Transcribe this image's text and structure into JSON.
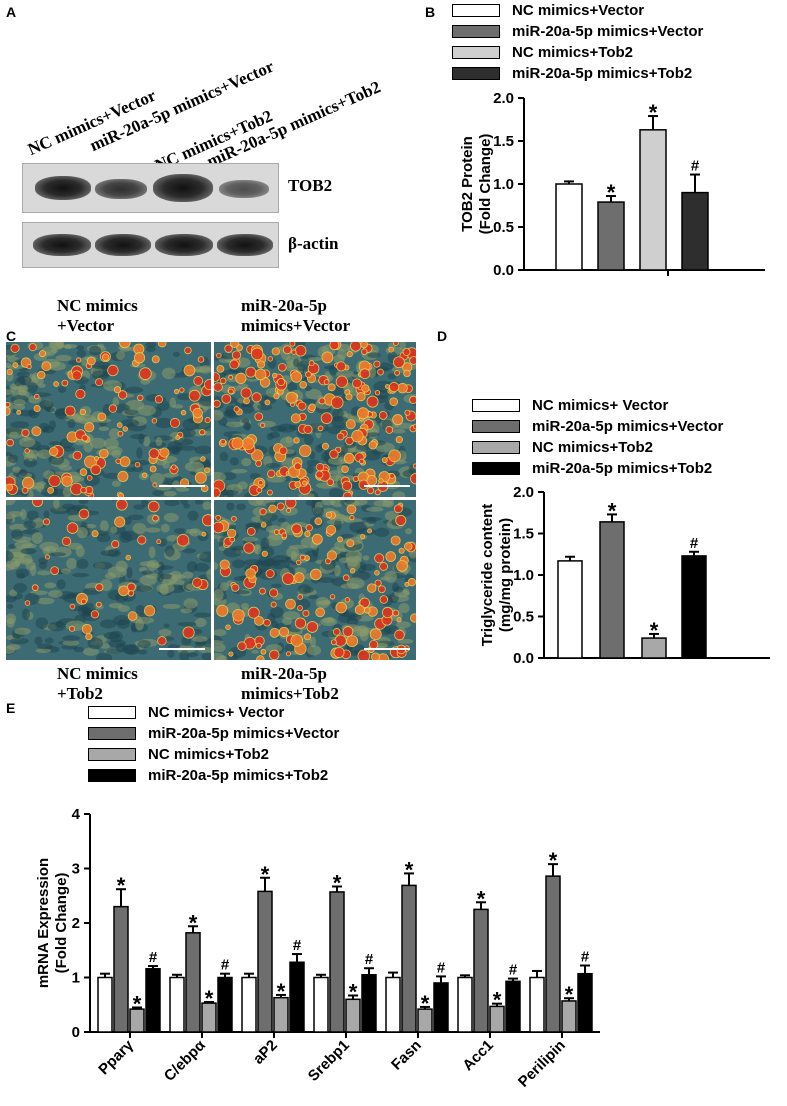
{
  "colors": {
    "white": "#ffffff",
    "dark_gray": "#6e6e6e",
    "light_gray": "#cfcfcf",
    "charcoal": "#2e2e2e",
    "black": "#000000",
    "light_gray_e": "#a8a8a8"
  },
  "panel_a": {
    "letter": "A",
    "lane_labels": [
      "NC mimics+Vector",
      "miR-20a-5p  mimics+Vector",
      "NC  mimics+Tob2",
      "miR-20a-5p mimics+Tob2"
    ],
    "row_labels": [
      "TOB2",
      "β-actin"
    ]
  },
  "panel_c": {
    "letter": "C",
    "labels": {
      "tl1": "NC mimics",
      "tl2": "+Vector",
      "tr1": "miR-20a-5p",
      "tr2": "mimics+Vector",
      "bl1": "NC  mimics",
      "bl2": "+Tob2",
      "br1": "miR-20a-5p",
      "br2": "mimics+Tob2"
    }
  },
  "chart_data": [
    {
      "panel": "B",
      "type": "bar",
      "legend": [
        "NC mimics+Vector",
        "miR-20a-5p mimics+Vector",
        "NC mimics+Tob2",
        "miR-20a-5p mimics+Tob2"
      ],
      "colors": [
        "#ffffff",
        "#6e6e6e",
        "#cfcfcf",
        "#2e2e2e"
      ],
      "values": [
        1.0,
        0.79,
        1.63,
        0.9
      ],
      "errors": [
        0.03,
        0.07,
        0.16,
        0.21
      ],
      "marks": [
        "",
        "*",
        "*",
        "#"
      ],
      "ylabel": "TOB2 Protein\n(Fold Change)",
      "ylim": [
        0,
        2.0
      ],
      "yticks": [
        "0.0",
        "0.5",
        "1.0",
        "1.5",
        "2.0"
      ],
      "grid": false
    },
    {
      "panel": "D",
      "type": "bar",
      "legend": [
        "NC mimics+ Vector",
        "miR-20a-5p mimics+Vector",
        "NC mimics+Tob2",
        "miR-20a-5p mimics+Tob2"
      ],
      "colors": [
        "#ffffff",
        "#6e6e6e",
        "#a8a8a8",
        "#000000"
      ],
      "values": [
        1.17,
        1.64,
        0.24,
        1.23
      ],
      "errors": [
        0.05,
        0.09,
        0.05,
        0.05
      ],
      "marks": [
        "",
        "*",
        "*",
        "#"
      ],
      "ylabel": "Triglyceride content\n(mg/mg protein)",
      "ylim": [
        0,
        2.0
      ],
      "yticks": [
        "0.0",
        "0.5",
        "1.0",
        "1.5",
        "2.0"
      ],
      "grid": false
    },
    {
      "panel": "E",
      "type": "bar",
      "legend": [
        "NC mimics+ Vector",
        "miR-20a-5p mimics+Vector",
        "NC mimics+Tob2",
        "miR-20a-5p mimics+Tob2"
      ],
      "colors": [
        "#ffffff",
        "#6e6e6e",
        "#a8a8a8",
        "#000000"
      ],
      "categories": [
        "Pparγ",
        "C/ebpα",
        "aP2",
        "Srebp1",
        "Fasn",
        "Acc1",
        "Perilipin"
      ],
      "series": [
        {
          "values": [
            1.0,
            1.0,
            1.0,
            1.0,
            1.0,
            1.0,
            1.0
          ],
          "errors": [
            0.07,
            0.05,
            0.07,
            0.05,
            0.09,
            0.04,
            0.12
          ],
          "marks": [
            "",
            "",
            "",
            "",
            "",
            "",
            ""
          ]
        },
        {
          "values": [
            2.3,
            1.82,
            2.58,
            2.57,
            2.69,
            2.25,
            2.86
          ],
          "errors": [
            0.32,
            0.12,
            0.25,
            0.1,
            0.22,
            0.13,
            0.22
          ],
          "marks": [
            "*",
            "*",
            "*",
            "*",
            "*",
            "*",
            "*"
          ]
        },
        {
          "values": [
            0.42,
            0.53,
            0.63,
            0.6,
            0.42,
            0.47,
            0.57
          ],
          "errors": [
            0.03,
            0.02,
            0.05,
            0.07,
            0.04,
            0.05,
            0.05
          ],
          "marks": [
            "*",
            "*",
            "*",
            "*",
            "*",
            "*",
            "*"
          ]
        },
        {
          "values": [
            1.16,
            1.0,
            1.28,
            1.05,
            0.9,
            0.93,
            1.07
          ],
          "errors": [
            0.05,
            0.07,
            0.15,
            0.12,
            0.12,
            0.05,
            0.15
          ],
          "marks": [
            "#",
            "#",
            "#",
            "#",
            "#",
            "#",
            "#"
          ]
        }
      ],
      "ylabel": "mRNA Expression\n(Fold Change)",
      "ylim": [
        0,
        4
      ],
      "yticks": [
        "0",
        "1",
        "2",
        "3",
        "4"
      ],
      "grid": false
    }
  ]
}
